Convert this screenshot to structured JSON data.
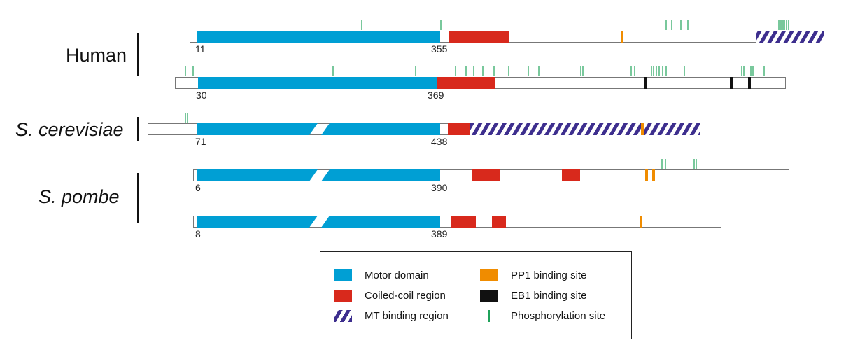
{
  "species": {
    "human": "Human",
    "cerevisiae": "S. cerevisiae",
    "pombe": "S. pombe"
  },
  "colors": {
    "motor": "#009fd4",
    "coiled": "#d8291c",
    "pp1": "#f08c00",
    "eb1": "#111111",
    "phos": "#1fa25a",
    "hatch": "#3d2e8e",
    "outline": "#777777"
  },
  "proteins": [
    {
      "species": "human",
      "motor_start_label": "11",
      "motor_end_label": "355",
      "broken_motor": false,
      "coiled": [
        [
          642,
          727
        ]
      ],
      "pp1": [
        889
      ],
      "eb1": [],
      "mt": [
        [
          1080,
          1178
        ]
      ],
      "phos": [
        517,
        630,
        952,
        960,
        973,
        983,
        1113,
        1115,
        1117,
        1119,
        1121,
        1124,
        1127
      ]
    },
    {
      "species": "human",
      "motor_start_label": "30",
      "motor_end_label": "369",
      "broken_motor": false,
      "coiled": [
        [
          624,
          707
        ]
      ],
      "pp1": [],
      "eb1": [
        922,
        1045,
        1071
      ],
      "mt": [],
      "phos": [
        265,
        276,
        476,
        594,
        651,
        666,
        677,
        690,
        706,
        727,
        755,
        770,
        830,
        833,
        902,
        907,
        931,
        934,
        938,
        942,
        947,
        952,
        978,
        1060,
        1063,
        1073,
        1076,
        1092
      ]
    },
    {
      "species": "cerevisiae",
      "motor_start_label": "71",
      "motor_end_label": "438",
      "broken_motor": true,
      "coiled": [
        [
          640,
          672
        ]
      ],
      "pp1": [
        918
      ],
      "eb1": [],
      "mt": [
        [
          672,
          1000
        ]
      ],
      "phos": [
        265,
        268
      ]
    },
    {
      "species": "pombe",
      "motor_start_label": "6",
      "motor_end_label": "390",
      "broken_motor": true,
      "coiled": [
        [
          675,
          714
        ],
        [
          803,
          829
        ]
      ],
      "pp1": [
        924,
        934
      ],
      "eb1": [],
      "mt": [],
      "phos": [
        946,
        951,
        992,
        995
      ]
    },
    {
      "species": "pombe",
      "motor_start_label": "8",
      "motor_end_label": "389",
      "broken_motor": true,
      "coiled": [
        [
          645,
          680
        ],
        [
          703,
          723
        ]
      ],
      "pp1": [
        916
      ],
      "eb1": [],
      "mt": [],
      "phos": []
    }
  ],
  "legend": {
    "motor": "Motor domain",
    "coiled": "Coiled-coil region",
    "mt": "MT binding region",
    "pp1": "PP1 binding site",
    "eb1": "EB1 binding site",
    "phos": "Phosphorylation site"
  }
}
